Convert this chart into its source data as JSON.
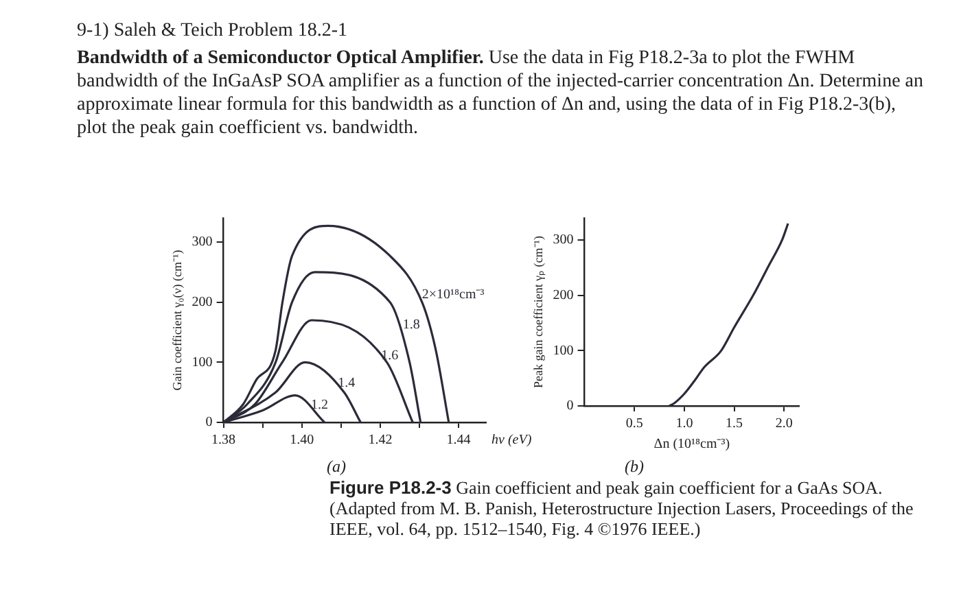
{
  "chart_data": [
    {
      "type": "line",
      "title": "9-1) Saleh & Teich Problem 18.2-1",
      "annotations": [
        "Bandwidth of a Semiconductor Optical Amplifier.",
        "Use the data in Fig P18.2-3a to plot the FWHM bandwidth of the InGaAsP SOA amplifier as a function of the injected-carrier concentration Δn. Determine an approximate linear formula for this bandwidth as a function of Δn and, using the data of in Fig P18.2-3(b), plot the peak gain coefficient vs. bandwidth.",
        "(a)"
      ],
      "xlabel": "hν (eV)",
      "ylabel": "Gain coefficient γ₀(ν) (cm⁻¹)",
      "xlim": [
        1.38,
        1.447
      ],
      "ylim": [
        0,
        340
      ],
      "xticks": [
        {
          "value": 1.38,
          "label": "1.38"
        },
        {
          "value": 1.39,
          "label": null
        },
        {
          "value": 1.4,
          "label": "1.40"
        },
        {
          "value": 1.41,
          "label": null
        },
        {
          "value": 1.42,
          "label": "1.42"
        },
        {
          "value": 1.43,
          "label": null
        },
        {
          "value": 1.44,
          "label": "1.44"
        }
      ],
      "yticks": [
        0,
        100,
        200,
        300
      ],
      "grid": false,
      "legend": false,
      "marker": "none",
      "line_style": "solid",
      "series": [
        {
          "name": "2×10¹⁸cm⁻³",
          "color": "#2b2b3a",
          "x": [
            1.38,
            1.385,
            1.3883,
            1.3933,
            1.395,
            1.3975,
            1.4067,
            1.4225,
            1.4308,
            1.4342,
            1.4375
          ],
          "values": [
            0,
            30,
            70,
            120,
            198,
            277,
            327,
            277,
            198,
            120,
            0
          ]
        },
        {
          "name": "1.8",
          "color": "#2b2b3a",
          "x": [
            1.38,
            1.386,
            1.3933,
            1.3975,
            1.4033,
            1.4225,
            1.4275,
            1.4303
          ],
          "values": [
            0,
            30,
            100,
            200,
            250,
            200,
            100,
            0
          ]
        },
        {
          "name": "1.6",
          "color": "#2b2b3a",
          "x": [
            1.38,
            1.388,
            1.395,
            1.4025,
            1.4217,
            1.4283
          ],
          "values": [
            0,
            30,
            100,
            170,
            100,
            0
          ]
        },
        {
          "name": "1.4",
          "color": "#2b2b3a",
          "x": [
            1.38,
            1.3933,
            1.4008,
            1.4108,
            1.415
          ],
          "values": [
            0,
            50,
            100,
            50,
            0
          ]
        },
        {
          "name": "1.2",
          "color": "#2b2b3a",
          "x": [
            1.38,
            1.39,
            1.3983,
            1.4058
          ],
          "values": [
            0,
            20,
            45,
            0
          ]
        }
      ]
    },
    {
      "type": "line",
      "annotations": [
        "(b)",
        "Figure P18.2-3",
        "Gain coefficient and peak gain coefficient for a GaAs SOA. (Adapted from M. B. Panish, Heterostructure Injection Lasers, Proceedings of the IEEE, vol. 64, pp. 1512–1540, Fig. 4 ©1976 IEEE.)"
      ],
      "xlabel": "Δn (10¹⁸cm⁻³)",
      "ylabel": "Peak gain coefficient γₚ (cm⁻¹)",
      "xlim": [
        0,
        2.15
      ],
      "ylim": [
        0,
        340
      ],
      "xticks": [
        {
          "value": 0.5,
          "label": "0.5"
        },
        {
          "value": 1.0,
          "label": "1.0"
        },
        {
          "value": 1.5,
          "label": "1.5"
        },
        {
          "value": 2.0,
          "label": "2.0"
        }
      ],
      "yticks": [
        0,
        100,
        200,
        300
      ],
      "grid": false,
      "legend": false,
      "marker": "none",
      "line_style": "solid",
      "series": [
        {
          "color": "#2b2b3a",
          "x": [
            0.85,
            0.9,
            1.0,
            1.1,
            1.2,
            1.37,
            1.5,
            1.69,
            1.85,
            1.98,
            2.04
          ],
          "values": [
            0,
            5,
            22,
            45,
            70,
            100,
            142,
            200,
            255,
            300,
            330
          ]
        }
      ]
    }
  ]
}
